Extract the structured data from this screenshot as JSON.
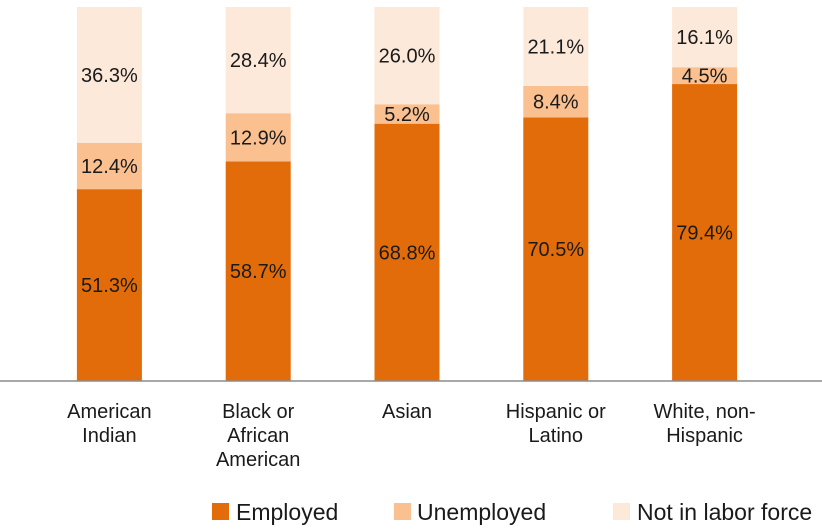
{
  "chart_data": {
    "type": "bar",
    "stacked": true,
    "orientation": "vertical",
    "percent_stacked": true,
    "ylim": [
      0,
      100
    ],
    "grid": false,
    "legend_position": "bottom",
    "title": "",
    "xlabel": "",
    "ylabel": "",
    "categories": [
      [
        "American",
        "Indian"
      ],
      [
        "Black or",
        "African",
        "American"
      ],
      [
        "Asian"
      ],
      [
        "Hispanic or",
        "Latino"
      ],
      [
        "White, non-",
        "Hispanic"
      ]
    ],
    "series": [
      {
        "name": "Employed",
        "color": "#E36C0A",
        "values": [
          51.3,
          58.7,
          68.8,
          70.5,
          79.4
        ],
        "labels": [
          "51.3%",
          "58.7%",
          "68.8%",
          "70.5%",
          "79.4%"
        ]
      },
      {
        "name": "Unemployed",
        "color": "#FAC090",
        "values": [
          12.4,
          12.9,
          5.2,
          8.4,
          4.5
        ],
        "labels": [
          "12.4%",
          "12.9%",
          "5.2%",
          "8.4%",
          "4.5%"
        ]
      },
      {
        "name": "Not in labor force",
        "color": "#FDE9D9",
        "values": [
          36.3,
          28.4,
          26.0,
          21.1,
          16.1
        ],
        "labels": [
          "36.3%",
          "28.4%",
          "26.0%",
          "21.1%",
          "16.1%"
        ]
      }
    ]
  }
}
